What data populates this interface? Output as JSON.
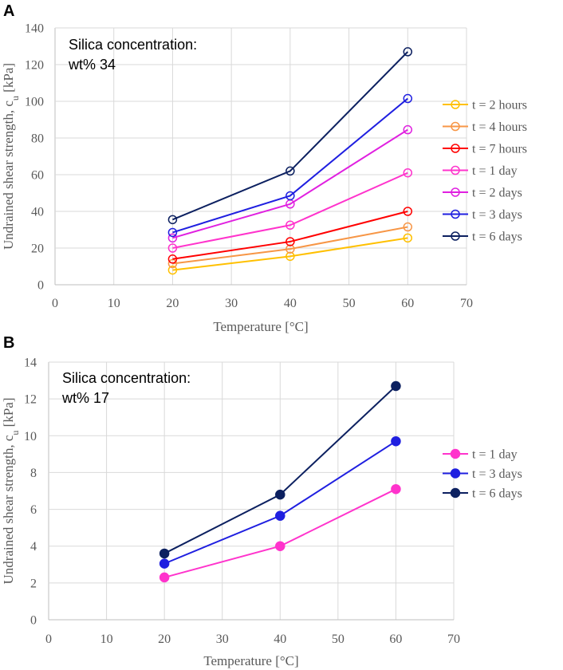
{
  "chart_data": [
    {
      "panel": "A",
      "type": "line",
      "marker": "open-circle",
      "annotation": [
        "Silica concentration:",
        "wt% 34"
      ],
      "xlabel": "Temperature [°C]",
      "ylabel_main": "Undrained shear strength, c",
      "ylabel_sub": "u",
      "ylabel_unit": " [kPa]",
      "xlim": [
        0,
        70
      ],
      "ylim": [
        0,
        140
      ],
      "xticks": [
        0,
        10,
        20,
        30,
        40,
        50,
        60,
        70
      ],
      "yticks": [
        0,
        20,
        40,
        60,
        80,
        100,
        120,
        140
      ],
      "x": [
        20,
        40,
        60
      ],
      "series": [
        {
          "name": "t = 2 hours",
          "color": "#ffc000",
          "values": [
            8,
            15.5,
            25.5
          ]
        },
        {
          "name": "t = 4 hours",
          "color": "#f79646",
          "values": [
            11.5,
            19.5,
            31.5
          ]
        },
        {
          "name": "t = 7 hours",
          "color": "#ff0000",
          "values": [
            14,
            23.5,
            40
          ]
        },
        {
          "name": "t = 1 day",
          "color": "#ff33cc",
          "values": [
            20,
            32.5,
            61
          ]
        },
        {
          "name": "t = 2 days",
          "color": "#e020e0",
          "values": [
            25.5,
            44,
            84.5
          ]
        },
        {
          "name": "t = 3 days",
          "color": "#1f1fe0",
          "values": [
            28.5,
            48.5,
            101.5
          ]
        },
        {
          "name": "t = 6 days",
          "color": "#0c2060",
          "values": [
            35.5,
            62,
            127
          ]
        }
      ]
    },
    {
      "panel": "B",
      "type": "line",
      "marker": "filled-circle",
      "annotation": [
        "Silica concentration:",
        "wt% 17"
      ],
      "xlabel": "Temperature [°C]",
      "ylabel_main": "Undrained shear strength, c",
      "ylabel_sub": "u",
      "ylabel_unit": " [kPa]",
      "xlim": [
        0,
        70
      ],
      "ylim": [
        0,
        14
      ],
      "xticks": [
        0,
        10,
        20,
        30,
        40,
        50,
        60,
        70
      ],
      "yticks": [
        0,
        2,
        4,
        6,
        8,
        10,
        12,
        14
      ],
      "x": [
        20,
        40,
        60
      ],
      "series": [
        {
          "name": "t = 1 day",
          "color": "#ff33cc",
          "values": [
            2.3,
            4,
            7.1
          ]
        },
        {
          "name": "t = 3 days",
          "color": "#1f1fe0",
          "values": [
            3.05,
            5.65,
            9.7
          ]
        },
        {
          "name": "t = 6 days",
          "color": "#0c2060",
          "values": [
            3.6,
            6.8,
            12.7
          ]
        }
      ]
    }
  ]
}
